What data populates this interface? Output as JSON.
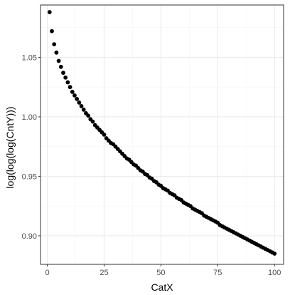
{
  "chart_data": {
    "type": "scatter",
    "xlabel": "CatX",
    "ylabel": "log(log(log(CntY)))",
    "xlim": [
      -3,
      104
    ],
    "ylim": [
      0.876,
      1.094
    ],
    "xticks": [
      0,
      25,
      50,
      75,
      100
    ],
    "xtick_labels": [
      "0",
      "25",
      "50",
      "75",
      "100"
    ],
    "yticks": [
      0.9,
      0.95,
      1.0,
      1.05
    ],
    "ytick_labels": [
      "0.90",
      "0.95",
      "1.00",
      "1.05"
    ],
    "grid": true,
    "legend": "none",
    "series": [
      {
        "color": "#000000",
        "x": [
          1,
          2,
          3,
          4,
          5,
          6,
          7,
          8,
          9,
          10,
          11,
          12,
          13,
          14,
          15,
          16,
          17,
          18,
          19,
          20,
          21,
          22,
          23,
          24,
          25,
          26,
          27,
          28,
          29,
          30,
          31,
          32,
          33,
          34,
          35,
          36,
          37,
          38,
          39,
          40,
          41,
          42,
          43,
          44,
          45,
          46,
          47,
          48,
          49,
          50,
          51,
          52,
          53,
          54,
          55,
          56,
          57,
          58,
          59,
          60,
          61,
          62,
          63,
          64,
          65,
          66,
          67,
          68,
          69,
          70,
          71,
          72,
          73,
          74,
          75,
          76,
          77,
          78,
          79,
          80,
          81,
          82,
          83,
          84,
          85,
          86,
          87,
          88,
          89,
          90,
          91,
          92,
          93,
          94,
          95,
          96,
          97,
          98,
          99,
          100
        ],
        "y": [
          1.088,
          1.072,
          1.061,
          1.054,
          1.047,
          1.042,
          1.037,
          1.033,
          1.029,
          1.025,
          1.021,
          1.018,
          1.015,
          1.012,
          1.009,
          1.006,
          1.003,
          1.001,
          0.998,
          0.996,
          0.993,
          0.991,
          0.989,
          0.987,
          0.985,
          0.982,
          0.98,
          0.978,
          0.977,
          0.975,
          0.973,
          0.971,
          0.969,
          0.967,
          0.965,
          0.964,
          0.962,
          0.96,
          0.959,
          0.957,
          0.955,
          0.954,
          0.952,
          0.951,
          0.949,
          0.948,
          0.946,
          0.945,
          0.943,
          0.942,
          0.94,
          0.939,
          0.938,
          0.936,
          0.935,
          0.934,
          0.932,
          0.931,
          0.93,
          0.928,
          0.927,
          0.926,
          0.925,
          0.923,
          0.922,
          0.921,
          0.92,
          0.919,
          0.917,
          0.916,
          0.915,
          0.914,
          0.913,
          0.912,
          0.911,
          0.909,
          0.908,
          0.907,
          0.906,
          0.905,
          0.904,
          0.903,
          0.902,
          0.901,
          0.9,
          0.899,
          0.898,
          0.897,
          0.896,
          0.895,
          0.894,
          0.893,
          0.892,
          0.891,
          0.89,
          0.889,
          0.888,
          0.887,
          0.886,
          0.885
        ]
      }
    ]
  },
  "style": {
    "point_color": "#000000",
    "grid_major_color": "#ebebeb",
    "grid_minor_color": "#f5f5f5",
    "panel_border_color": "#333333",
    "tick_label_color": "#4d4d4d"
  }
}
